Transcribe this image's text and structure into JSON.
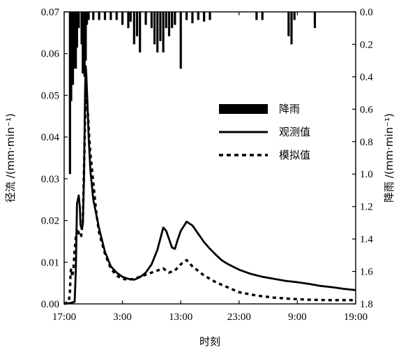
{
  "chart_data": {
    "type": "line",
    "xlabel": "时刻",
    "ylabel_left": "径流 /(mm·min⁻¹)",
    "ylabel_right": "降雨 /(mm·min⁻¹)",
    "x_ticks": [
      "17:00",
      "3:00",
      "13:00",
      "23:00",
      "9:00",
      "19:00"
    ],
    "x_range_hours": [
      0,
      50
    ],
    "y_left_ticks": [
      "0.00",
      "0.01",
      "0.02",
      "0.03",
      "0.04",
      "0.05",
      "0.06",
      "0.07"
    ],
    "y_left_range": [
      0,
      0.07
    ],
    "y_right_ticks": [
      "0.0",
      "0.2",
      "0.4",
      "0.6",
      "0.8",
      "1.0",
      "1.2",
      "1.4",
      "1.6",
      "1.8"
    ],
    "y_right_range": [
      0,
      1.8
    ],
    "y_right_inverted": true,
    "legend": [
      {
        "key": "rain",
        "label": "降雨",
        "style": "bar"
      },
      {
        "key": "observed",
        "label": "观测值",
        "style": "solid"
      },
      {
        "key": "simulated",
        "label": "模拟值",
        "style": "dashed"
      }
    ],
    "legend_placement": "upper-right",
    "series": [
      {
        "name": "观测值",
        "style": "solid",
        "x": [
          0,
          1.0,
          1.8,
          2.0,
          2.2,
          2.5,
          2.7,
          2.8,
          3.0,
          3.2,
          3.4,
          3.6,
          3.7,
          3.8,
          4.0,
          4.2,
          4.5,
          5.0,
          6.0,
          7.0,
          8.0,
          9.0,
          10.0,
          11.0,
          12.0,
          13.0,
          14.0,
          15.0,
          16.0,
          17.0,
          17.5,
          18.0,
          18.5,
          19.0,
          19.5,
          20.0,
          21.0,
          22.0,
          23.0,
          24.0,
          25.0,
          26.0,
          27.0,
          28.0,
          30.0,
          32.0,
          34.0,
          36.0,
          38.0,
          40.0,
          42.0,
          44.0,
          46.0,
          48.0,
          50.0
        ],
        "y": [
          0.0,
          0.0002,
          0.0005,
          0.008,
          0.024,
          0.026,
          0.023,
          0.019,
          0.018,
          0.019,
          0.03,
          0.052,
          0.057,
          0.055,
          0.048,
          0.04,
          0.032,
          0.025,
          0.018,
          0.0125,
          0.009,
          0.0075,
          0.0065,
          0.006,
          0.0058,
          0.0064,
          0.0075,
          0.0095,
          0.013,
          0.0183,
          0.0175,
          0.0155,
          0.0135,
          0.0132,
          0.0155,
          0.0175,
          0.0197,
          0.0188,
          0.0168,
          0.0148,
          0.0132,
          0.0118,
          0.0105,
          0.0096,
          0.0082,
          0.0072,
          0.0065,
          0.006,
          0.0055,
          0.0052,
          0.0048,
          0.0043,
          0.004,
          0.0036,
          0.0033
        ]
      },
      {
        "name": "模拟值",
        "style": "dashed",
        "x": [
          0,
          0.8,
          1.0,
          1.1,
          1.2,
          1.4,
          1.6,
          1.8,
          2.0,
          2.3,
          2.6,
          2.9,
          3.2,
          3.5,
          3.7,
          3.9,
          4.1,
          4.3,
          4.5,
          5.0,
          5.5,
          6.0,
          7.0,
          8.0,
          9.0,
          10.0,
          11.0,
          12.0,
          13.0,
          14.0,
          15.0,
          16.0,
          17.0,
          18.0,
          19.0,
          20.0,
          21.0,
          22.0,
          24.0,
          26.0,
          28.0,
          30.0,
          33.0,
          36.0,
          39.0,
          42.0,
          45.0,
          48.0,
          50.0
        ],
        "y": [
          0.0,
          0.0005,
          0.003,
          0.0075,
          0.0085,
          0.0065,
          0.0085,
          0.013,
          0.016,
          0.018,
          0.0165,
          0.016,
          0.02,
          0.038,
          0.051,
          0.048,
          0.045,
          0.04,
          0.036,
          0.029,
          0.022,
          0.017,
          0.012,
          0.0085,
          0.0068,
          0.006,
          0.0058,
          0.006,
          0.0065,
          0.007,
          0.0075,
          0.008,
          0.0085,
          0.0075,
          0.008,
          0.0095,
          0.0105,
          0.009,
          0.0068,
          0.0052,
          0.004,
          0.0028,
          0.002,
          0.0015,
          0.0012,
          0.001,
          0.0009,
          0.0009,
          0.0009
        ]
      }
    ],
    "rain_bars": {
      "name": "降雨",
      "x": [
        1.0,
        1.2,
        1.5,
        1.7,
        2.0,
        2.2,
        2.5,
        3.0,
        3.2,
        3.5,
        3.7,
        3.9,
        4.2,
        5.0,
        6.0,
        7.0,
        8.0,
        9.0,
        10.0,
        11.0,
        11.4,
        12.0,
        12.5,
        13.0,
        14.0,
        15.0,
        15.5,
        16.0,
        16.5,
        17.0,
        17.5,
        18.0,
        18.5,
        19.0,
        20.0,
        21.0,
        22.0,
        23.0,
        24.0,
        25.0,
        33.0,
        34.0,
        38.5,
        39.0,
        39.5,
        43.0
      ],
      "y": [
        1.0,
        0.55,
        0.45,
        0.35,
        0.35,
        0.22,
        0.1,
        0.2,
        0.38,
        0.4,
        0.3,
        0.08,
        0.05,
        0.05,
        0.05,
        0.05,
        0.05,
        0.05,
        0.08,
        0.1,
        0.06,
        0.2,
        0.15,
        0.25,
        0.08,
        0.1,
        0.2,
        0.25,
        0.18,
        0.25,
        0.1,
        0.15,
        0.1,
        0.08,
        0.35,
        0.05,
        0.07,
        0.05,
        0.06,
        0.05,
        0.05,
        0.05,
        0.15,
        0.2,
        0.05,
        0.1
      ]
    }
  }
}
